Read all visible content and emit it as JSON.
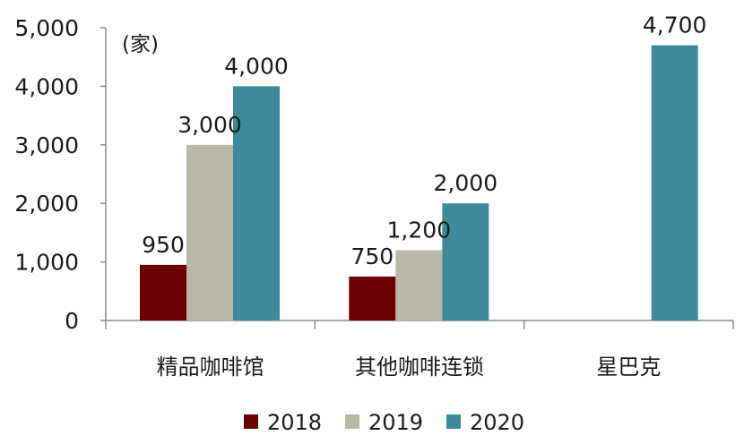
{
  "chart_data": {
    "type": "bar",
    "title": "",
    "xlabel": "",
    "ylabel": "",
    "unit": "(家)",
    "categories": [
      "精品咖啡馆",
      "其他咖啡连锁",
      "星巴克"
    ],
    "series": [
      {
        "name": "2018",
        "color": "#6b0000",
        "values": [
          950,
          750,
          null
        ],
        "labels": [
          "950",
          "750",
          ""
        ]
      },
      {
        "name": "2019",
        "color": "#b9b8a7",
        "values": [
          3000,
          1200,
          null
        ],
        "labels": [
          "3,000",
          "1,200",
          ""
        ]
      },
      {
        "name": "2020",
        "color": "#3d8a9c",
        "values": [
          4000,
          2000,
          4700
        ],
        "labels": [
          "4,000",
          "2,000",
          "4,700"
        ]
      }
    ],
    "ylim": [
      0,
      5000
    ],
    "yticks": [
      0,
      1000,
      2000,
      3000,
      4000,
      5000
    ],
    "ytick_labels": [
      "0",
      "1,000",
      "2,000",
      "3,000",
      "4,000",
      "5,000"
    ],
    "grid": false,
    "legend_position": "bottom"
  }
}
